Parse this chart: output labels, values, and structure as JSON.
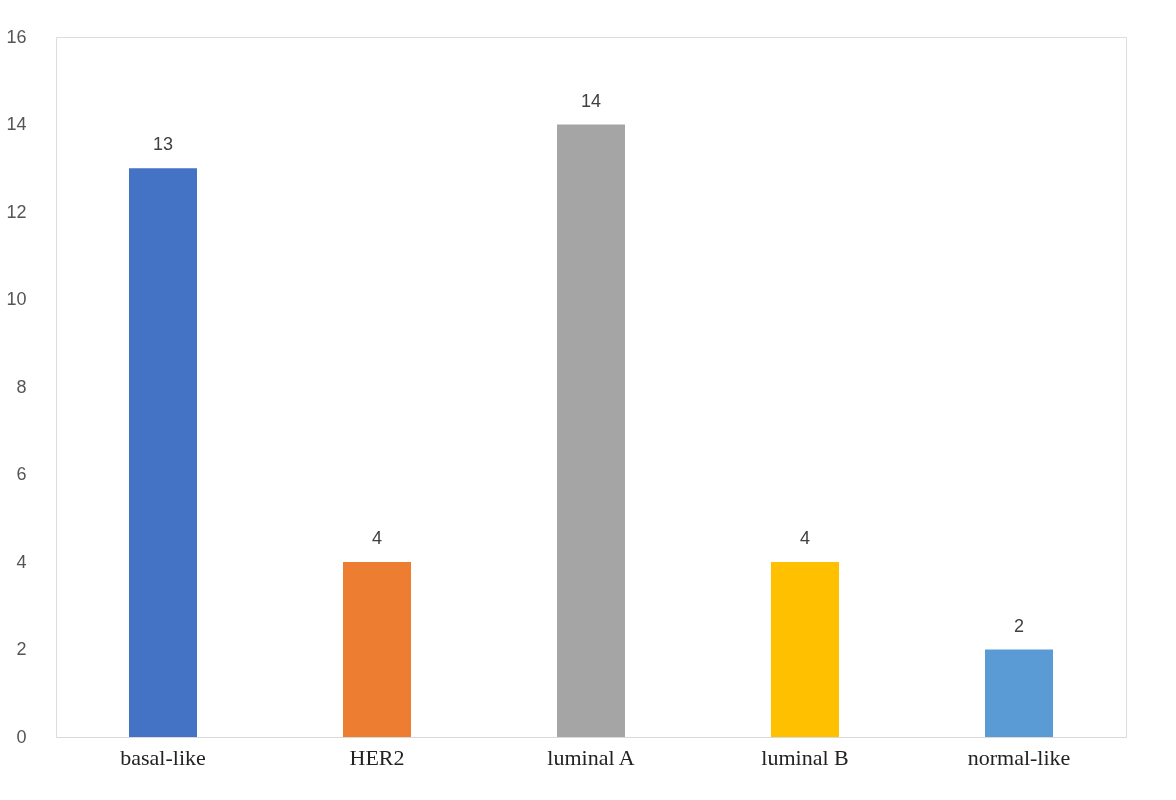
{
  "chart_data": {
    "type": "bar",
    "categories": [
      "basal-like",
      "HER2",
      "luminal A",
      "luminal B",
      "normal-like"
    ],
    "values": [
      13,
      4,
      14,
      4,
      2
    ],
    "colors": [
      "#4472c4",
      "#ed7d31",
      "#a5a5a5",
      "#ffc000",
      "#5b9bd5"
    ],
    "ylim": [
      0,
      16
    ],
    "yticks": [
      0,
      2,
      4,
      6,
      8,
      10,
      12,
      14,
      16
    ],
    "grid": false,
    "legend": false,
    "data_labels": true
  }
}
